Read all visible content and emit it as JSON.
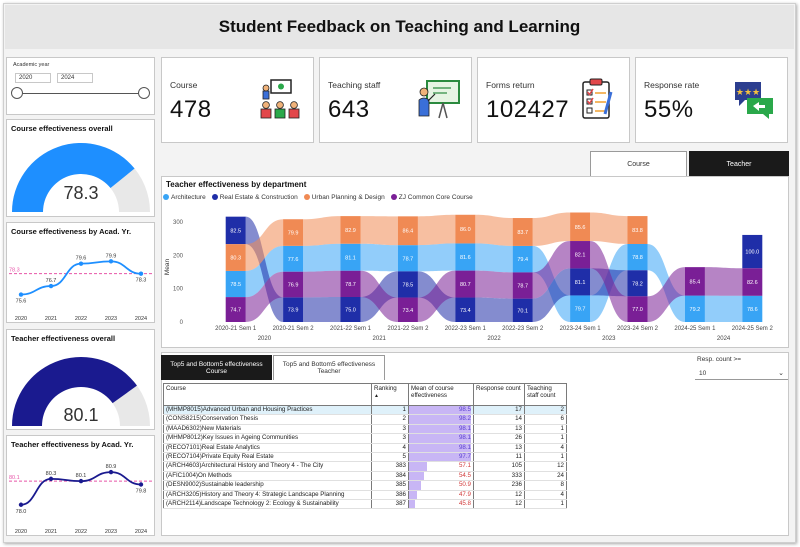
{
  "title": "Student Feedback on Teaching and Learning",
  "slicer": {
    "label": "Academic year",
    "from": "2020",
    "to": "2024"
  },
  "kpis": [
    {
      "label": "Course",
      "value": "478",
      "icon": "lecture-room-icon"
    },
    {
      "label": "Teaching staff",
      "value": "643",
      "icon": "teacher-whiteboard-icon"
    },
    {
      "label": "Forms return",
      "value": "102427",
      "icon": "clipboard-checklist-icon"
    },
    {
      "label": "Response rate",
      "value": "55%",
      "icon": "chat-bubbles-icon"
    }
  ],
  "course_overall": {
    "title": "Course effectiveness overall",
    "value": "78.3",
    "fraction": 0.783,
    "color": "#1e8fff"
  },
  "teacher_overall": {
    "title": "Teacher effectiveness overall",
    "value": "80.1",
    "fraction": 0.801,
    "color": "#1a1a8f"
  },
  "toggle": {
    "course": "Course",
    "teacher": "Teacher"
  },
  "tabs": {
    "tab1": "Top5 and Bottom5 effectiveness Course",
    "tab2": "Top5 and Bottom5 effectiveness Teacher"
  },
  "resp_filter": {
    "label": "Resp. count >=",
    "value": "10"
  },
  "chart_data": [
    {
      "type": "line",
      "title": "Course effectiveness by Acad. Yr.",
      "x": [
        "2020",
        "2021",
        "2022",
        "2023",
        "2024"
      ],
      "series": [
        {
          "values": [
            75.6,
            76.7,
            79.6,
            79.9,
            78.3
          ],
          "color": "#1e8fff"
        }
      ],
      "reference_line": 78.3,
      "ylim": [
        74.5,
        81.5
      ]
    },
    {
      "type": "line",
      "title": "Teacher effectiveness by Acad. Yr.",
      "x": [
        "2020",
        "2021",
        "2022",
        "2023",
        "2024"
      ],
      "series": [
        {
          "values": [
            78.0,
            80.3,
            80.1,
            80.9,
            79.8
          ],
          "color": "#1a1a8f"
        }
      ],
      "reference_line": 80.1,
      "ylim": [
        77.0,
        81.8
      ]
    },
    {
      "type": "area",
      "title": "Teacher effectiveness by department",
      "ylabel": "Mean",
      "yticks": [
        0,
        100,
        200,
        300
      ],
      "ylim": [
        0,
        330
      ],
      "categories": [
        "2020-21 Sem 1",
        "2020-21 Sem 2",
        "2021-22 Sem 1",
        "2021-22 Sem 2",
        "2022-23 Sem 1",
        "2022-23 Sem 2",
        "2023-24 Sem 1",
        "2023-24 Sem 2",
        "2024-25 Sem 1",
        "2024-25 Sem 2"
      ],
      "year_labels": [
        "2020",
        "2021",
        "2022",
        "2023",
        "2024"
      ],
      "series": [
        {
          "name": "Architecture",
          "color": "#38a4f5",
          "values": [
            78.5,
            77.6,
            81.1,
            78.7,
            81.6,
            79.4,
            79.7,
            78.8,
            79.2,
            78.6
          ]
        },
        {
          "name": "Real Estate & Construction",
          "color": "#1f2ea8",
          "values": [
            82.5,
            73.9,
            75.0,
            78.5,
            73.4,
            70.1,
            81.1,
            78.2,
            null,
            100.0
          ]
        },
        {
          "name": "Urban Planning & Design",
          "color": "#f08a54",
          "values": [
            80.3,
            79.9,
            82.9,
            86.4,
            86.0,
            83.7,
            85.6,
            83.8,
            null,
            null
          ]
        },
        {
          "name": "ZJ Common Core Course",
          "color": "#7a1f96",
          "values": [
            74.7,
            76.9,
            78.7,
            73.4,
            80.7,
            78.7,
            82.1,
            77.0,
            85.4,
            82.6
          ]
        }
      ]
    }
  ],
  "table": {
    "headers": [
      "Course",
      "Ranking",
      "Mean of course effectiveness",
      "Response count",
      "Teaching staff count"
    ],
    "sort_arrow": "▲",
    "rows": [
      {
        "course": "(MHMP8015)Advanced Urban and Housing Practices",
        "rank": "1",
        "mean": "98.5",
        "resp": "17",
        "staff": "2"
      },
      {
        "course": "(CONS8215)Conservation Thesis",
        "rank": "2",
        "mean": "98.2",
        "resp": "14",
        "staff": "6"
      },
      {
        "course": "(MAAD6302)New Materials",
        "rank": "3",
        "mean": "98.1",
        "resp": "13",
        "staff": "1"
      },
      {
        "course": "(MHMP8012)Key Issues in Ageing Communities",
        "rank": "3",
        "mean": "98.1",
        "resp": "26",
        "staff": "1"
      },
      {
        "course": "(RECO7101)Real Estate Analytics",
        "rank": "4",
        "mean": "98.1",
        "resp": "13",
        "staff": "4"
      },
      {
        "course": "(RECO7104)Private Equity Real Estate",
        "rank": "5",
        "mean": "97.7",
        "resp": "11",
        "staff": "1"
      },
      {
        "course": "(ARCH4603)Architectural History and Theory 4 - The City",
        "rank": "383",
        "mean": "57.1",
        "resp": "105",
        "staff": "12"
      },
      {
        "course": "(AFIC1004)On Methods",
        "rank": "384",
        "mean": "54.5",
        "resp": "333",
        "staff": "24"
      },
      {
        "course": "(DESN9002)Sustainable leadership",
        "rank": "385",
        "mean": "50.9",
        "resp": "236",
        "staff": "8"
      },
      {
        "course": "(ARCH3205)History and Theory 4: Strategic Landscape Planning",
        "rank": "386",
        "mean": "47.9",
        "resp": "12",
        "staff": "4"
      },
      {
        "course": "(ARCH2114)Landscape Technology 2: Ecology & Sustainability",
        "rank": "387",
        "mean": "45.8",
        "resp": "12",
        "staff": "1"
      }
    ]
  }
}
